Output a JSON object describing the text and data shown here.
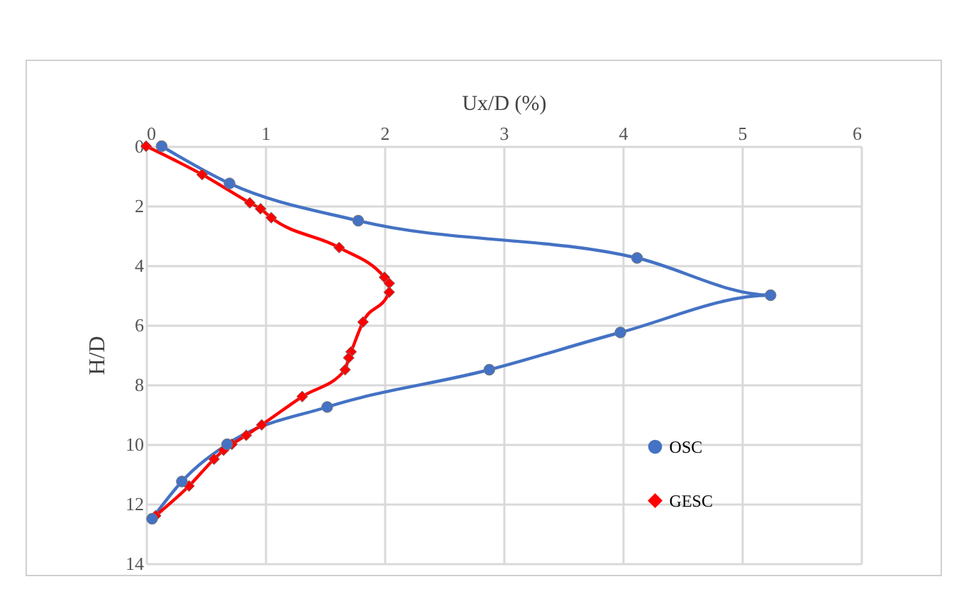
{
  "chart_data": {
    "type": "line",
    "xlabel": "Ux/D (%)",
    "ylabel": "H/D",
    "xlim": [
      0,
      6
    ],
    "xticks": [
      0,
      1,
      2,
      3,
      4,
      5,
      6
    ],
    "ylim": [
      14,
      0
    ],
    "yticks": [
      0,
      2,
      4,
      6,
      8,
      10,
      12,
      14
    ],
    "grid": true,
    "legend": "right",
    "line_style": "solid",
    "series": [
      {
        "name": "OSC",
        "color": "#4472c4",
        "marker": "circle",
        "x": [
          0.13,
          0.7,
          1.78,
          4.12,
          5.24,
          3.98,
          2.88,
          1.52,
          0.68,
          0.3,
          0.05
        ],
        "values": [
          0,
          1.25,
          2.5,
          3.75,
          5.0,
          6.25,
          7.5,
          8.75,
          10.0,
          11.25,
          12.5
        ]
      },
      {
        "name": "GESC",
        "color": "#ff0000",
        "marker": "diamond",
        "x": [
          0,
          0.47,
          0.87,
          0.96,
          1.05,
          1.62,
          2.0,
          2.04,
          2.04,
          1.82,
          1.72,
          1.7,
          1.67,
          1.31,
          0.97,
          0.84,
          0.72,
          0.65,
          0.57,
          0.36,
          0.08
        ],
        "values": [
          0,
          0.95,
          1.9,
          2.1,
          2.4,
          3.4,
          4.4,
          4.6,
          4.9,
          5.9,
          6.9,
          7.1,
          7.5,
          8.4,
          9.35,
          9.7,
          10.0,
          10.2,
          10.5,
          11.4,
          12.4
        ]
      }
    ]
  }
}
